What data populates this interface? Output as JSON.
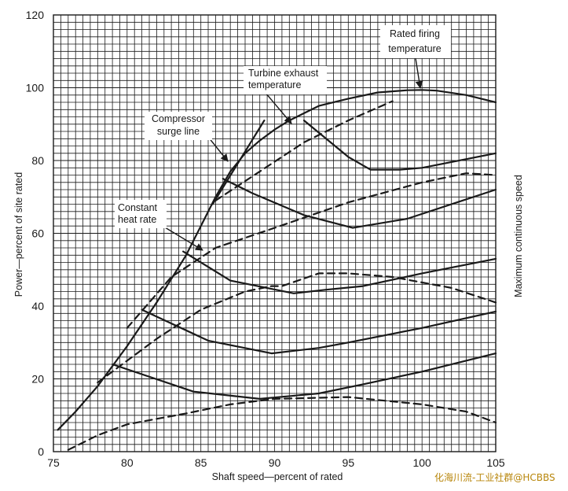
{
  "chart_data": {
    "type": "line",
    "xlabel": "Shaft speed—percent of rated",
    "ylabel": "Power—percent of site rated",
    "right_label": "Maximum continuous speed",
    "xlim": [
      75,
      105
    ],
    "ylim": [
      0,
      120
    ],
    "x_ticks": [
      "75",
      "80",
      "85",
      "90",
      "95",
      "100",
      "105"
    ],
    "y_ticks": [
      "0",
      "20",
      "40",
      "60",
      "80",
      "100",
      "120"
    ],
    "grid": "on (fine grid)",
    "annotations": {
      "rated_firing": [
        "Rated firing",
        "temperature"
      ],
      "turbine_exhaust": [
        "Turbine exhaust",
        "temperature"
      ],
      "compressor_surge": [
        "Compressor",
        "surge line"
      ],
      "constant_heat": [
        "Constant",
        "heat rate"
      ]
    },
    "series": [
      {
        "style": "solid",
        "points": [
          [
            75.3,
            6
          ],
          [
            76.5,
            11
          ],
          [
            78,
            18
          ],
          [
            80,
            29
          ],
          [
            82,
            41
          ],
          [
            84,
            54
          ],
          [
            85,
            62
          ],
          [
            86,
            70
          ],
          [
            87,
            77
          ],
          [
            88,
            82
          ],
          [
            89,
            85.5
          ],
          [
            90,
            88.5
          ],
          [
            91,
            91
          ],
          [
            92,
            93
          ],
          [
            93,
            95
          ],
          [
            95,
            97
          ],
          [
            97,
            98.7
          ],
          [
            99,
            99.3
          ],
          [
            100,
            99.4
          ],
          [
            101,
            99.2
          ],
          [
            103,
            98
          ],
          [
            105,
            96
          ]
        ]
      },
      {
        "style": "solid",
        "points": [
          [
            85.8,
            68
          ],
          [
            89.3,
            91
          ]
        ]
      },
      {
        "style": "solid",
        "points": [
          [
            92,
            91
          ],
          [
            95,
            81
          ],
          [
            96.5,
            77.5
          ],
          [
            98.5,
            77.5
          ],
          [
            100,
            78
          ],
          [
            105,
            82
          ]
        ]
      },
      {
        "style": "solid",
        "points": [
          [
            86.5,
            75
          ],
          [
            88.5,
            71
          ],
          [
            92,
            65
          ],
          [
            95.3,
            61.5
          ],
          [
            99,
            64
          ],
          [
            105,
            72
          ]
        ]
      },
      {
        "style": "solid",
        "points": [
          [
            83.8,
            55
          ],
          [
            87,
            47
          ],
          [
            91.3,
            43.5
          ],
          [
            93.5,
            44.5
          ],
          [
            96,
            45.5
          ],
          [
            100,
            49
          ],
          [
            105,
            53
          ]
        ]
      },
      {
        "style": "solid",
        "points": [
          [
            81,
            39
          ],
          [
            85.5,
            30.5
          ],
          [
            89.8,
            27
          ],
          [
            93,
            28.5
          ],
          [
            95,
            30
          ],
          [
            100,
            34
          ],
          [
            105,
            38.5
          ]
        ]
      },
      {
        "style": "solid",
        "points": [
          [
            79,
            24
          ],
          [
            84.5,
            16.5
          ],
          [
            89,
            14.5
          ],
          [
            93,
            16
          ],
          [
            96,
            18.5
          ],
          [
            100,
            22
          ],
          [
            105,
            27
          ]
        ]
      },
      {
        "style": "dashed",
        "points": [
          [
            78,
            19
          ],
          [
            80,
            25
          ],
          [
            82,
            31
          ],
          [
            85,
            39
          ],
          [
            88,
            44
          ],
          [
            89.8,
            45.5
          ],
          [
            90.5,
            45.5
          ],
          [
            93,
            49
          ],
          [
            95,
            49
          ],
          [
            98,
            48
          ],
          [
            102,
            45
          ],
          [
            105,
            41
          ]
        ]
      },
      {
        "style": "dashed",
        "points": [
          [
            76,
            0.5
          ],
          [
            78,
            4.5
          ],
          [
            80,
            7.5
          ],
          [
            84,
            10.5
          ],
          [
            87,
            13
          ],
          [
            90,
            14.5
          ],
          [
            95,
            15
          ],
          [
            100,
            13
          ],
          [
            103,
            11
          ],
          [
            105,
            8
          ]
        ]
      },
      {
        "style": "dashed",
        "points": [
          [
            86,
            69
          ],
          [
            89,
            77
          ],
          [
            92,
            85
          ],
          [
            95,
            91
          ],
          [
            98,
            96.3
          ]
        ]
      },
      {
        "style": "dashed",
        "points": [
          [
            80,
            34
          ],
          [
            83,
            48
          ],
          [
            86,
            56
          ],
          [
            90,
            61.5
          ],
          [
            95,
            68.5
          ],
          [
            100,
            74
          ],
          [
            103,
            76.5
          ],
          [
            105,
            76
          ]
        ]
      }
    ]
  },
  "watermark": "化海川流-工业社群@HCBBS"
}
